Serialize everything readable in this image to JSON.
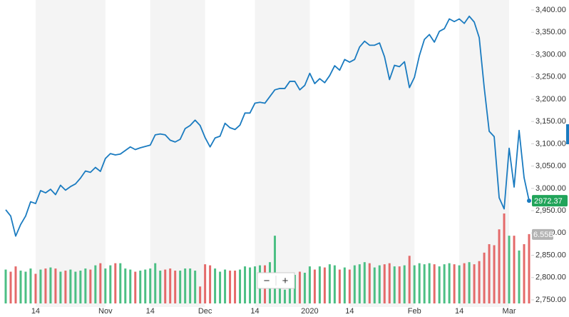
{
  "chart_data": {
    "type": "line",
    "categories": [
      null,
      null,
      null,
      null,
      null,
      null,
      "14",
      null,
      null,
      null,
      null,
      null,
      null,
      null,
      null,
      null,
      null,
      null,
      null,
      null,
      "Nov",
      null,
      null,
      null,
      null,
      null,
      null,
      null,
      null,
      "14",
      null,
      null,
      null,
      null,
      null,
      null,
      null,
      null,
      null,
      null,
      "Dec",
      null,
      null,
      null,
      null,
      null,
      null,
      null,
      null,
      null,
      "14",
      null,
      null,
      null,
      null,
      null,
      null,
      null,
      null,
      null,
      null,
      "2020",
      null,
      null,
      null,
      null,
      null,
      null,
      null,
      "14",
      null,
      null,
      null,
      null,
      null,
      null,
      null,
      null,
      null,
      null,
      null,
      null,
      "Feb",
      null,
      null,
      null,
      null,
      null,
      null,
      null,
      null,
      "14",
      null,
      null,
      null,
      null,
      null,
      null,
      null,
      null,
      null,
      "Mar",
      null,
      null,
      null,
      null
    ],
    "series": [
      {
        "color": "#1a7bc0",
        "values": [
          2952,
          2938,
          2893,
          2919,
          2938,
          2970,
          2966,
          2995,
          2990,
          2998,
          2986,
          3007,
          2996,
          3004,
          3010,
          3023,
          3039,
          3036,
          3047,
          3038,
          3067,
          3078,
          3075,
          3077,
          3085,
          3093,
          3087,
          3091,
          3094,
          3097,
          3120,
          3122,
          3120,
          3108,
          3104,
          3110,
          3134,
          3141,
          3153,
          3141,
          3114,
          3093,
          3113,
          3117,
          3146,
          3136,
          3132,
          3142,
          3169,
          3169,
          3191,
          3193,
          3191,
          3206,
          3221,
          3224,
          3224,
          3240,
          3240,
          3221,
          3231,
          3258,
          3235,
          3246,
          3237,
          3253,
          3275,
          3265,
          3289,
          3283,
          3289,
          3317,
          3330,
          3321,
          3321,
          3326,
          3295,
          3244,
          3276,
          3273,
          3284,
          3226,
          3249,
          3298,
          3334,
          3345,
          3328,
          3352,
          3358,
          3380,
          3374,
          3380,
          3370,
          3386,
          3373,
          3338,
          3226,
          3128,
          3116,
          2979,
          2954,
          3090,
          3003,
          3130,
          3024,
          2972.37
        ]
      }
    ],
    "ylim": [
      2750,
      3400
    ],
    "yticks": [
      {
        "value": 3400,
        "label": "3,400.00"
      },
      {
        "value": 3350,
        "label": "3,350.00"
      },
      {
        "value": 3300,
        "label": "3,300.00"
      },
      {
        "value": 3250,
        "label": "3,250.00"
      },
      {
        "value": 3200,
        "label": "3,200.00"
      },
      {
        "value": 3150,
        "label": "3,150.00"
      },
      {
        "value": 3100,
        "label": "3,100.00"
      },
      {
        "value": 3050,
        "label": "3,050.00"
      },
      {
        "value": 3000,
        "label": "3,000.00"
      },
      {
        "value": 2950,
        "label": "2,950.00"
      },
      {
        "value": 2900,
        "label": "2,900.00"
      },
      {
        "value": 2850,
        "label": "2,850.00"
      },
      {
        "value": 2800,
        "label": "2,800.00"
      },
      {
        "value": 2750,
        "label": "2,750.00"
      }
    ],
    "grid": false,
    "price_tag_color": "#21a45a",
    "volume": {
      "up_color": "#4cbf84",
      "down_color": "#e46a6a",
      "tag_color": "#b3b3b3",
      "ylim": [
        0,
        8.5
      ],
      "values": [
        3.2,
        3.0,
        3.5,
        3.1,
        3.0,
        3.3,
        2.8,
        3.2,
        3.3,
        3.4,
        3.3,
        3.0,
        3.1,
        3.2,
        3.0,
        3.1,
        3.3,
        3.2,
        3.6,
        3.8,
        3.3,
        3.6,
        3.8,
        3.8,
        3.3,
        3.2,
        3.0,
        3.1,
        3.2,
        3.3,
        3.8,
        3.1,
        3.2,
        3.3,
        3.1,
        3.1,
        3.3,
        3.3,
        3.1,
        1.6,
        3.7,
        3.6,
        3.3,
        3.0,
        3.2,
        3.1,
        3.1,
        3.2,
        3.5,
        3.4,
        3.5,
        3.6,
        3.6,
        3.9,
        6.4,
        2.7,
        1.3,
        2.1,
        2.7,
        3.0,
        2.9,
        3.5,
        3.2,
        3.5,
        3.4,
        3.7,
        3.6,
        3.2,
        3.4,
        3.2,
        3.6,
        3.7,
        3.9,
        3.8,
        3.4,
        3.6,
        3.7,
        3.8,
        3.5,
        3.5,
        3.6,
        4.5,
        3.6,
        3.8,
        3.7,
        3.8,
        3.7,
        3.5,
        3.7,
        3.8,
        3.7,
        3.6,
        3.8,
        3.9,
        3.7,
        4.0,
        4.8,
        5.6,
        5.5,
        7.0,
        8.5,
        6.4,
        6.4,
        5.0,
        5.6,
        6.55
      ],
      "value_labels": [
        null,
        null,
        null,
        null,
        null,
        null,
        null,
        null,
        null,
        null,
        null,
        null,
        null,
        null,
        null,
        null,
        null,
        null,
        null,
        null,
        null,
        null,
        null,
        null,
        null,
        null,
        null,
        null,
        null,
        null,
        null,
        null,
        null,
        null,
        null,
        null,
        null,
        null,
        null,
        null,
        null,
        null,
        null,
        null,
        null,
        null,
        null,
        null,
        null,
        null,
        null,
        null,
        null,
        null,
        null,
        null,
        null,
        null,
        null,
        null,
        null,
        null,
        null,
        null,
        null,
        null,
        null,
        null,
        null,
        null,
        null,
        null,
        null,
        null,
        null,
        null,
        null,
        null,
        null,
        null,
        null,
        null,
        null,
        null,
        null,
        null,
        null,
        null,
        null,
        null,
        null,
        null,
        null,
        null,
        null,
        null,
        null,
        null,
        null,
        null,
        null,
        null,
        null,
        null,
        null,
        "6.55B"
      ]
    },
    "controls": [
      "−",
      "+"
    ]
  }
}
